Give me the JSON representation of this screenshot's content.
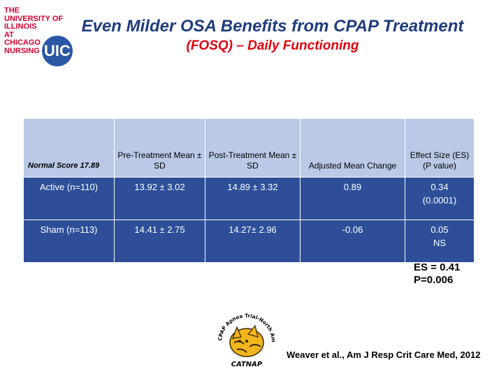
{
  "logo": {
    "lines": [
      "THE",
      "UNIVERSITY OF",
      "ILLINOIS",
      "AT",
      "CHICAGO",
      "NURSING"
    ],
    "badge": "UIC"
  },
  "title": "Even Milder OSA Benefits from CPAP Treatment",
  "subtitle": "(FOSQ) – Daily Functioning",
  "table": {
    "headers": [
      "Normal Score 17.89",
      "Pre-Treatment Mean ± SD",
      "Post-Treatment Mean ± SD",
      "Adjusted Mean Change",
      "Effect Size (ES) (P value)"
    ],
    "rows": [
      {
        "group": "Active (n=110)",
        "pre": "13.92 ± 3.02",
        "post": "14.89 ± 3.32",
        "change": "0.89",
        "es": "0.34",
        "p": "(0.0001)"
      },
      {
        "group": "Sham (n=113)",
        "pre": "14.41 ± 2.75",
        "post": "14.27± 2.96",
        "change": "-0.06",
        "es": "0.05",
        "p": "NS"
      }
    ]
  },
  "summary": {
    "es": "ES = 0.41",
    "p": "P=0.006"
  },
  "catnap": {
    "ring_text": "CPAP Apnea Trial-North American Program",
    "label": "CATNAP"
  },
  "citation": "Weaver et al., Am J Resp Crit Care Med, 2012",
  "colors": {
    "title": "#1f3c7d",
    "subtitle": "#e2000f",
    "header_bg": "#b9c9e6",
    "row_bg": "#2e4f98",
    "logo_red": "#d50032",
    "logo_blue": "#2a57a6"
  }
}
